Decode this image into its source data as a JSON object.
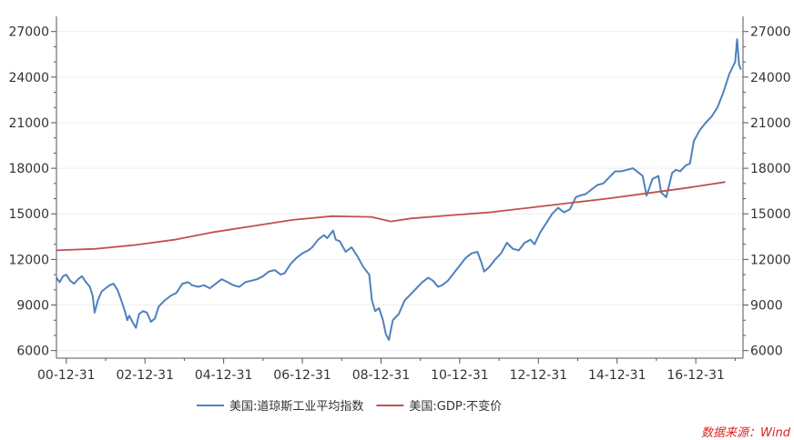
{
  "chart_data": {
    "type": "line",
    "title": "",
    "xlabel": "",
    "ylabel": "",
    "x_tick_labels": [
      "00-12-31",
      "02-12-31",
      "04-12-31",
      "06-12-31",
      "08-12-31",
      "10-12-31",
      "12-12-31",
      "14-12-31",
      "16-12-31"
    ],
    "x_range": [
      2000.75,
      2018.2
    ],
    "y_left": {
      "ylim": [
        5500,
        28000
      ],
      "ticks": [
        6000,
        9000,
        12000,
        15000,
        18000,
        21000,
        24000,
        27000
      ],
      "tick_labels": [
        "6000",
        "9000",
        "12000",
        "15000",
        "18000",
        "21000",
        "24000",
        "27000"
      ]
    },
    "y_right": {
      "ylim": [
        5500,
        28000
      ],
      "ticks": [
        6000,
        9000,
        12000,
        15000,
        18000,
        21000,
        24000,
        27000
      ],
      "tick_labels": [
        "6000",
        "9000",
        "12000",
        "15000",
        "18000",
        "21000",
        "24000",
        "27000"
      ]
    },
    "legend_position": "bottom",
    "grid": true,
    "source_note": "数据来源：Wind",
    "series": [
      {
        "name": "美国:道琼斯工业平均指数",
        "color": "#4f81bd",
        "axis": "left",
        "x": [
          2000.75,
          2000.83,
          2000.92,
          2001.0,
          2001.1,
          2001.2,
          2001.3,
          2001.4,
          2001.5,
          2001.6,
          2001.67,
          2001.72,
          2001.8,
          2001.9,
          2002.0,
          2002.1,
          2002.2,
          2002.3,
          2002.4,
          2002.5,
          2002.55,
          2002.6,
          2002.7,
          2002.77,
          2002.85,
          2002.95,
          2003.05,
          2003.15,
          2003.25,
          2003.35,
          2003.5,
          2003.65,
          2003.8,
          2003.95,
          2004.1,
          2004.2,
          2004.35,
          2004.5,
          2004.65,
          2004.8,
          2004.95,
          2005.1,
          2005.25,
          2005.4,
          2005.55,
          2005.7,
          2005.85,
          2006.0,
          2006.15,
          2006.3,
          2006.45,
          2006.55,
          2006.7,
          2006.85,
          2007.0,
          2007.15,
          2007.25,
          2007.4,
          2007.55,
          2007.63,
          2007.78,
          2007.85,
          2007.95,
          2008.1,
          2008.25,
          2008.4,
          2008.55,
          2008.7,
          2008.77,
          2008.85,
          2008.95,
          2009.05,
          2009.12,
          2009.2,
          2009.3,
          2009.45,
          2009.6,
          2009.75,
          2009.9,
          2010.05,
          2010.2,
          2010.32,
          2010.45,
          2010.55,
          2010.7,
          2010.85,
          2011.0,
          2011.15,
          2011.3,
          2011.45,
          2011.55,
          2011.62,
          2011.75,
          2011.9,
          2012.05,
          2012.2,
          2012.35,
          2012.5,
          2012.65,
          2012.8,
          2012.9,
          2013.05,
          2013.2,
          2013.35,
          2013.5,
          2013.65,
          2013.8,
          2013.95,
          2014.05,
          2014.2,
          2014.35,
          2014.5,
          2014.65,
          2014.8,
          2014.95,
          2015.1,
          2015.25,
          2015.4,
          2015.55,
          2015.65,
          2015.75,
          2015.9,
          2016.05,
          2016.12,
          2016.25,
          2016.4,
          2016.5,
          2016.6,
          2016.75,
          2016.85,
          2016.95,
          2017.1,
          2017.25,
          2017.4,
          2017.55,
          2017.7,
          2017.85,
          2018.0,
          2018.05,
          2018.1,
          2018.15
        ],
        "values": [
          10800,
          10500,
          10900,
          11000,
          10600,
          10400,
          10700,
          10900,
          10500,
          10200,
          9600,
          8500,
          9300,
          9900,
          10100,
          10300,
          10400,
          10000,
          9300,
          8500,
          8000,
          8300,
          7800,
          7500,
          8400,
          8600,
          8500,
          7900,
          8100,
          8900,
          9300,
          9600,
          9800,
          10400,
          10500,
          10300,
          10200,
          10300,
          10100,
          10400,
          10700,
          10500,
          10300,
          10200,
          10500,
          10600,
          10700,
          10900,
          11200,
          11300,
          11000,
          11100,
          11700,
          12100,
          12400,
          12600,
          12800,
          13300,
          13600,
          13400,
          13900,
          13300,
          13200,
          12500,
          12800,
          12200,
          11500,
          11000,
          9300,
          8600,
          8800,
          8000,
          7100,
          6700,
          8000,
          8400,
          9300,
          9700,
          10100,
          10500,
          10800,
          10600,
          10200,
          10300,
          10600,
          11100,
          11600,
          12100,
          12400,
          12500,
          11800,
          11200,
          11500,
          12000,
          12400,
          13100,
          12700,
          12600,
          13100,
          13300,
          13000,
          13800,
          14400,
          15000,
          15400,
          15100,
          15300,
          16100,
          16200,
          16300,
          16600,
          16900,
          17000,
          17400,
          17800,
          17800,
          17900,
          18000,
          17700,
          17500,
          16200,
          17300,
          17500,
          16400,
          16100,
          17700,
          17900,
          17800,
          18200,
          18300,
          19800,
          20500,
          21000,
          21400,
          22000,
          23000,
          24200,
          25000,
          26500,
          24800,
          24500
        ]
      },
      {
        "name": "美国:GDP:不变价",
        "color": "#c0504d",
        "axis": "left",
        "x": [
          2000.75,
          2001.75,
          2002.75,
          2003.75,
          2004.75,
          2005.75,
          2006.75,
          2007.75,
          2008.75,
          2009.25,
          2009.75,
          2010.75,
          2011.75,
          2012.75,
          2013.75,
          2014.75,
          2015.75,
          2016.75,
          2017.75
        ],
        "values": [
          12600,
          12700,
          12950,
          13300,
          13800,
          14200,
          14600,
          14850,
          14800,
          14500,
          14700,
          14900,
          15100,
          15400,
          15700,
          16000,
          16350,
          16700,
          17100
        ]
      }
    ]
  }
}
